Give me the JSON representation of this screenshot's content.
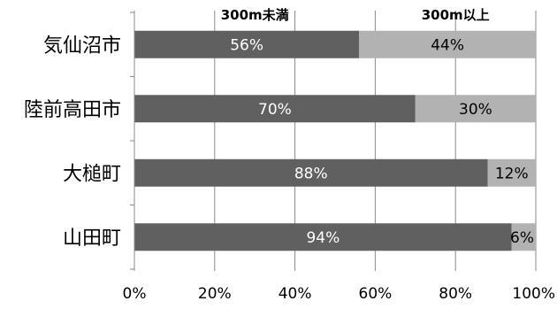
{
  "chart_data": {
    "type": "bar",
    "orientation": "horizontal",
    "stacked": true,
    "categories": [
      "気仙沼市",
      "陸前高田市",
      "大槌町",
      "山田町"
    ],
    "series": [
      {
        "name": "300m未満",
        "values": [
          56,
          70,
          88,
          94
        ],
        "labels": [
          "56%",
          "70%",
          "88%",
          "94%"
        ],
        "color": "#606060",
        "label_color": "#ffffff"
      },
      {
        "name": "300m以上",
        "values": [
          44,
          30,
          12,
          6
        ],
        "labels": [
          "44%",
          "30%",
          "12%",
          "6%"
        ],
        "color": "#b2b2b2",
        "label_color": "#000000"
      }
    ],
    "xlim": [
      0,
      100
    ],
    "x_ticks": [
      "0%",
      "20%",
      "40%",
      "60%",
      "80%",
      "100%"
    ],
    "grid": "vertical",
    "legend": "top"
  }
}
